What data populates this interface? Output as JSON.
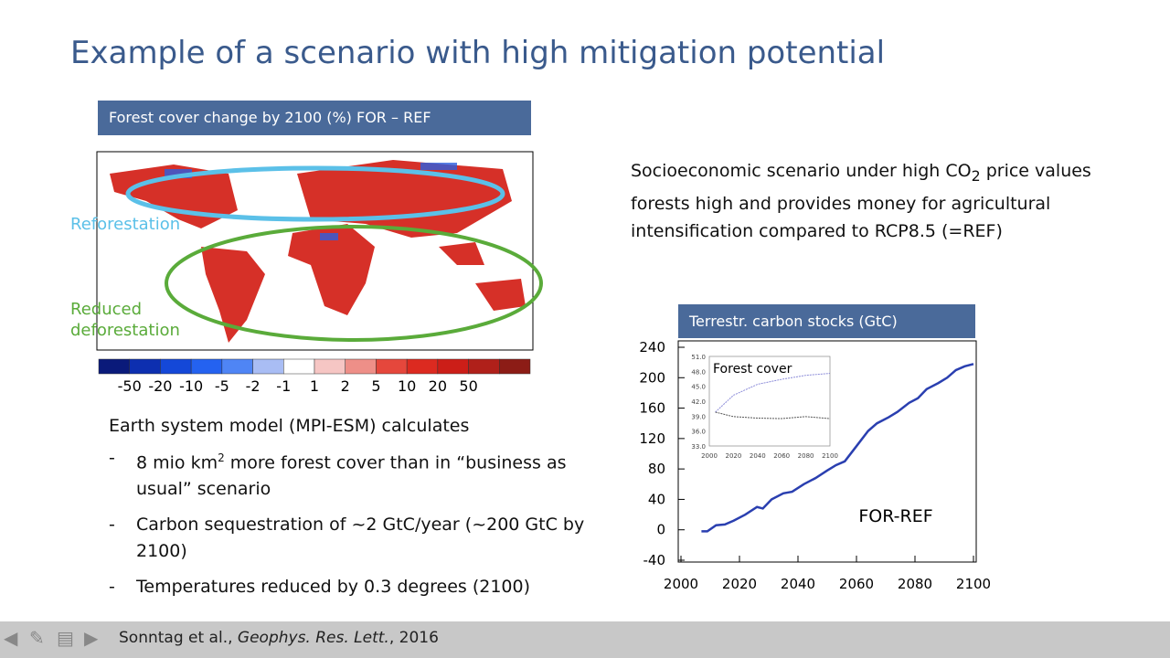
{
  "title": "Example of a scenario with high mitigation potential",
  "map": {
    "header": "Forest cover change by 2100 (%) FOR – REF",
    "label_reforestation": "Reforestation",
    "label_reduced_1": "Reduced",
    "label_reduced_2": "deforestation",
    "colorbar": {
      "colors": [
        "#0a1a7a",
        "#0d2fb0",
        "#1448d8",
        "#2462f0",
        "#4f85f5",
        "#a9bdf4",
        "#ffffff",
        "#f6c6c4",
        "#ee8f88",
        "#e5473c",
        "#dc2a20",
        "#cc1e18",
        "#b0201a",
        "#8c1c16"
      ],
      "labels": [
        "-50",
        "-20",
        "-10",
        "-5",
        "-2",
        "-1",
        "1",
        "2",
        "5",
        "10",
        "20",
        "50"
      ]
    },
    "reforestation_color": "#5bc0e8",
    "reduced_color": "#5aab3a"
  },
  "description": [
    "Socioeconomic scenario under high CO",
    "2",
    " price values forests high and provides money for agricultural intensification compared to RCP8.5 (=REF)"
  ],
  "bullets": {
    "heading": "Earth system model (MPI-ESM) calculates",
    "items": [
      {
        "dash": "-",
        "text_a": "8 mio km",
        "sup": "2",
        "text_b": " more forest cover than in “business as usual” scenario"
      },
      {
        "dash": "-",
        "text_a": "Carbon sequestration of ~2 GtC/year (~200 GtC by 2100)",
        "sup": "",
        "text_b": ""
      },
      {
        "dash": "-",
        "text_a": "Temperatures reduced by 0.3 degrees (2100)",
        "sup": "",
        "text_b": ""
      }
    ]
  },
  "footer": {
    "authors": "Sonntag et al., ",
    "journal": "Geophys. Res. Lett.",
    "year": ", 2016"
  },
  "chart_data": [
    {
      "type": "line",
      "title": "Terrestr. carbon stocks (GtC)",
      "annotation": "FOR-REF",
      "xlim": [
        2000,
        2100
      ],
      "ylim": [
        -40,
        240
      ],
      "xticks": [
        2000,
        2020,
        2040,
        2060,
        2080,
        2100
      ],
      "yticks": [
        -40,
        0,
        40,
        80,
        120,
        160,
        200,
        240
      ],
      "series": [
        {
          "color": "#2a3fb0",
          "x": [
            2007,
            2009,
            2012,
            2015,
            2018,
            2022,
            2026,
            2028,
            2031,
            2035,
            2038,
            2042,
            2046,
            2050,
            2053,
            2056,
            2060,
            2064,
            2067,
            2071,
            2074,
            2078,
            2081,
            2084,
            2088,
            2091,
            2094,
            2097,
            2100
          ],
          "y": [
            -2,
            -2,
            6,
            7,
            12,
            20,
            30,
            28,
            40,
            48,
            50,
            60,
            68,
            78,
            85,
            90,
            110,
            130,
            140,
            148,
            155,
            167,
            173,
            185,
            193,
            200,
            210,
            215,
            218
          ]
        }
      ]
    },
    {
      "type": "line",
      "title": "Forest cover",
      "xlim": [
        2000,
        2100
      ],
      "ylim": [
        33,
        51
      ],
      "xticks": [
        2000,
        2020,
        2040,
        2060,
        2080,
        2100
      ],
      "yticks": [
        "33.0",
        "36.0",
        "39.0",
        "42.0",
        "45.0",
        "48.0",
        "51.0"
      ],
      "series": [
        {
          "color": "#8a8ad8",
          "x": [
            2005,
            2020,
            2040,
            2060,
            2080,
            2100
          ],
          "y": [
            39.8,
            43.2,
            45.4,
            46.4,
            47.2,
            47.6
          ]
        },
        {
          "color": "#555555",
          "x": [
            2005,
            2020,
            2040,
            2060,
            2080,
            2100
          ],
          "y": [
            39.8,
            38.9,
            38.6,
            38.5,
            38.9,
            38.5
          ]
        }
      ]
    }
  ]
}
